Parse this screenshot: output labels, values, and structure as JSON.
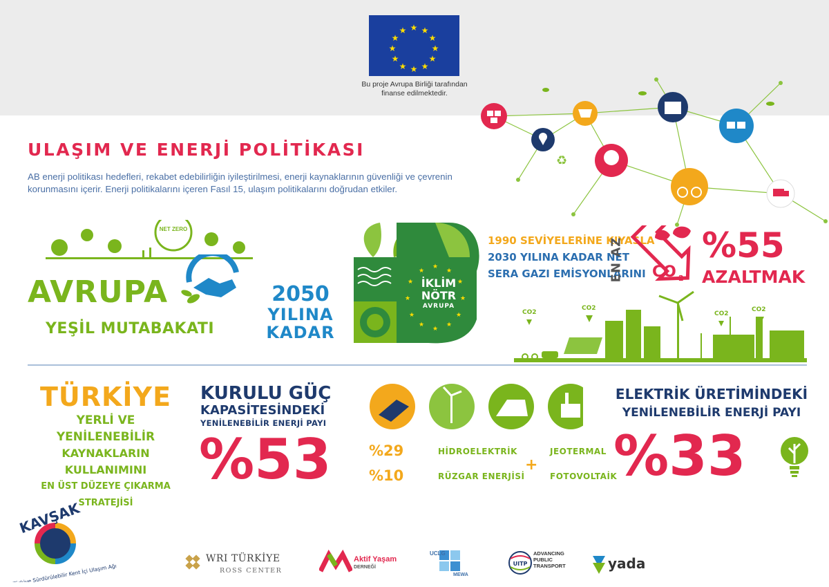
{
  "header": {
    "eu_caption_line1": "Bu proje Avrupa Birliği tarafından",
    "eu_caption_line2": "finanse edilmektedir."
  },
  "title": "ULAŞIM VE ENERJİ POLİTİKASI",
  "intro": "AB enerji politikası hedefleri, rekabet edebilirliğin iyileştirilmesi, enerji kaynaklarının güvenliği ve çevrenin korunmasını içerir. Enerji politikalarını içeren Fasıl 15, ulaşım politikalarını doğrudan etkiler.",
  "green_deal": {
    "line1": "AVRUPA",
    "line2": "YEŞİL MUTABAKATI",
    "net_zero_label": "NET ZERO"
  },
  "target_2050": {
    "year": "2050",
    "line2": "YILINA",
    "line3": "KADAR"
  },
  "climate_neutral": {
    "line1": "İKLİM",
    "line2": "NÖTR",
    "line3": "AVRUPA"
  },
  "ghg_target": {
    "line1": "1990 SEVİYELERİNE KIYASLA",
    "line2": "2030 YILINA KADAR NET",
    "line3": "SERA GAZI EMİSYONLARINI",
    "vertical": "EN AZ",
    "co2_label": "CO",
    "co2_sub": "2",
    "percent": "%55",
    "verb": "AZALTMAK",
    "city_co2_label": "CO2"
  },
  "turkiye": {
    "line1": "TÜRKİYE",
    "line2": "YERLİ VE YENİLENEBİLİR",
    "line3": "KAYNAKLARIN KULLANIMINI",
    "line4": "EN ÜST DÜZEYE ÇIKARMA STRATEJİSİ"
  },
  "installed_capacity": {
    "line1": "KURULU GÜÇ",
    "line2": "KAPASİTESİNDEKİ",
    "line3": "YENİLENEBİLİR ENERJİ PAYI",
    "percent": "%53"
  },
  "shares": {
    "hydro_pct": "%29",
    "hydro_label": "HİDROELEKTRİK",
    "wind_pct": "%10",
    "wind_label": "RÜZGAR ENERJİSİ",
    "plus": "+",
    "geo_label": "JEOTERMAL",
    "solar_label": "FOTOVOLTAİK"
  },
  "electricity": {
    "line1": "ELEKTRİK ÜRETİMİNDEKİ",
    "line2": "YENİLENEBİLİR ENERJİ PAYI",
    "percent": "%33"
  },
  "footer": {
    "kavsak_title": "KAVŞAK",
    "kavsak_sub": "Türkiye Sürdürülebilir Kent İçi Ulaşım Ağı",
    "wri": "WRI TÜRKİYE",
    "wri_sub": "ROSS CENTER",
    "aktif": "Aktif Yaşam",
    "aktif_sub": "DERNEĞİ",
    "uclg": "UCLG",
    "mewa": "MEWA",
    "uitp": "UITP",
    "uitp_l1": "ADVANCING",
    "uitp_l2": "PUBLIC",
    "uitp_l3": "TRANSPORT",
    "yada": "yada"
  },
  "colors": {
    "red": "#e2284f",
    "green": "#7ab51d",
    "orange": "#f3a81c",
    "navy": "#1e3a6d",
    "blue": "#1f88c8"
  }
}
